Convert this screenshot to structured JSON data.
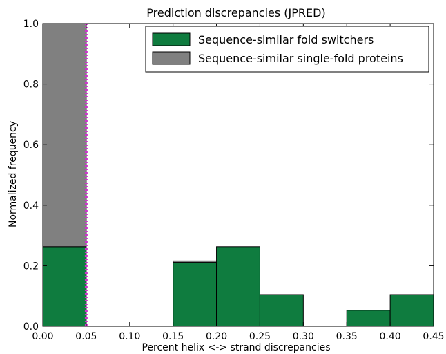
{
  "chart_data": {
    "type": "bar",
    "title": "Prediction discrepancies (JPRED)",
    "xlabel": "Percent helix <-> strand discrepancies",
    "ylabel": "Normalized frequency",
    "xlim": [
      0.0,
      0.45
    ],
    "ylim": [
      0.0,
      1.0
    ],
    "xticks": [
      "0.00",
      "0.05",
      "0.10",
      "0.15",
      "0.20",
      "0.25",
      "0.30",
      "0.35",
      "0.40",
      "0.45"
    ],
    "yticks": [
      "0.0",
      "0.2",
      "0.4",
      "0.6",
      "0.8",
      "1.0"
    ],
    "bin_edges": [
      0.0,
      0.05,
      0.1,
      0.15,
      0.2,
      0.25,
      0.3,
      0.35,
      0.4,
      0.45
    ],
    "stacked": true,
    "series": [
      {
        "name": "Sequence-similar fold switchers",
        "color": "#0f7c3f",
        "values": [
          0.263,
          0.0,
          0.0,
          0.211,
          0.263,
          0.105,
          0.0,
          0.053,
          0.105
        ]
      },
      {
        "name": "Sequence-similar single-fold proteins",
        "color": "#808080",
        "values": [
          0.737,
          0.0,
          0.0,
          0.005,
          0.0,
          0.0,
          0.0,
          0.0,
          0.0
        ]
      }
    ],
    "vline": {
      "x": 0.05,
      "color": "#cc33cc",
      "style": "dotted"
    },
    "legend_position": "top-right",
    "grid": false
  }
}
